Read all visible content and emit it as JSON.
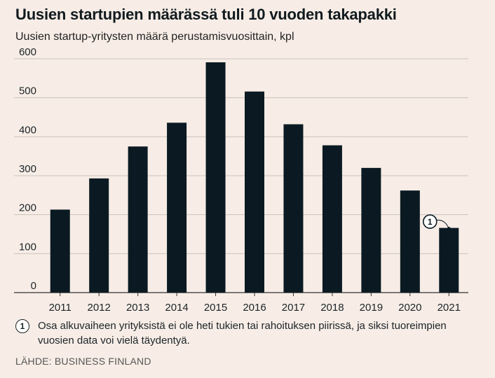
{
  "chart_data": {
    "type": "bar",
    "title": "Uusien startupien määrässä tuli 10 vuoden takapakki",
    "subtitle": "Uusien startup-yritysten määrä perustamisvuosittain, kpl",
    "categories": [
      "2011",
      "2012",
      "2013",
      "2014",
      "2015",
      "2016",
      "2017",
      "2018",
      "2019",
      "2020",
      "2021"
    ],
    "values": [
      213,
      293,
      375,
      436,
      591,
      516,
      432,
      378,
      320,
      262,
      166
    ],
    "ylim": [
      0,
      600
    ],
    "yticks": [
      0,
      100,
      200,
      300,
      400,
      500,
      600
    ],
    "grid": true,
    "bar_color": "#0b1a22",
    "annotation": {
      "category": "2021",
      "marker": "1"
    }
  },
  "footnote": {
    "marker": "1",
    "text": "Osa alkuvaiheen yrityksistä ei ole heti tukien tai rahoituksen piirissä, ja siksi tuoreimpien vuosien data voi vielä täydentyä."
  },
  "source": "LÄHDE: BUSINESS FINLAND"
}
